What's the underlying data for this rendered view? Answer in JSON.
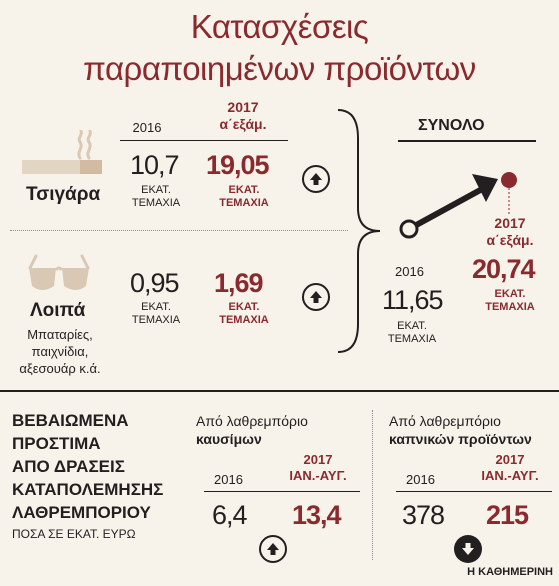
{
  "title_line1": "Κατασχέσεις",
  "title_line2": "παραποιημένων προϊόντων",
  "cigarettes": {
    "label": "Τσιγάρα",
    "y2016": "2016",
    "y2017": "2017",
    "y2017_sub": "α΄εξάμ.",
    "v2016": "10,7",
    "v2017": "19,05",
    "unit_l1": "ΕΚΑΤ.",
    "unit_l2": "ΤΕΜΑΧΙΑ"
  },
  "other": {
    "label": "Λοιπά",
    "desc_l1": "Μπαταρίες,",
    "desc_l2": "παιχνίδια,",
    "desc_l3": "αξεσουάρ κ.ά.",
    "v2016": "0,95",
    "v2017": "1,69",
    "unit_l1": "ΕΚΑΤ.",
    "unit_l2": "ΤΕΜΑΧΙΑ"
  },
  "total": {
    "label": "ΣΥΝΟΛΟ",
    "y2016": "2016",
    "v2016": "11,65",
    "y2017": "2017",
    "y2017_sub": "α΄εξάμ.",
    "v2017": "20,74",
    "unit_l1": "ΕΚΑΤ.",
    "unit_l2": "ΤΕΜΑΧΙΑ"
  },
  "fines": {
    "heading_l1": "ΒΕΒΑΙΩΜΕΝΑ",
    "heading_l2": "ΠΡΟΣΤΙΜΑ",
    "heading_l3": "ΑΠΟ ΔΡΑΣΕΙΣ",
    "heading_l4": "ΚΑΤΑΠΟΛΕΜΗΣΗΣ",
    "heading_l5": "ΛΑΘΡΕΜΠΟΡΙΟΥ",
    "note": "ΠΟΣΑ ΣΕ ΕΚΑΤ. ΕΥΡΩ",
    "fuel": {
      "label_l1": "Από λαθρεμπόριο",
      "label_l2": "καυσίμων",
      "y2016": "2016",
      "y2017": "2017",
      "y2017_sub": "ΙΑΝ.-ΑΥΓ.",
      "v2016": "6,4",
      "v2017": "13,4"
    },
    "tobacco": {
      "label_l1": "Από λαθρεμπόριο",
      "label_l2": "καπνικών προϊόντων",
      "y2016": "2016",
      "y2017": "2017",
      "y2017_sub": "ΙΑΝ.-ΑΥΓ.",
      "v2016": "378",
      "v2017": "215"
    }
  },
  "credit": "Η ΚΑΘΗΜΕΡΙΝΗ",
  "colors": {
    "accent": "#8b2a2e",
    "ink": "#231f20",
    "icon": "#d9c8b4",
    "bg": "#f7f3ea"
  },
  "icons": [
    "steam-icon",
    "cigarette-icon",
    "sunglasses-icon",
    "arrow-up-icon",
    "arrow-down-icon",
    "trend-arrow-icon"
  ]
}
